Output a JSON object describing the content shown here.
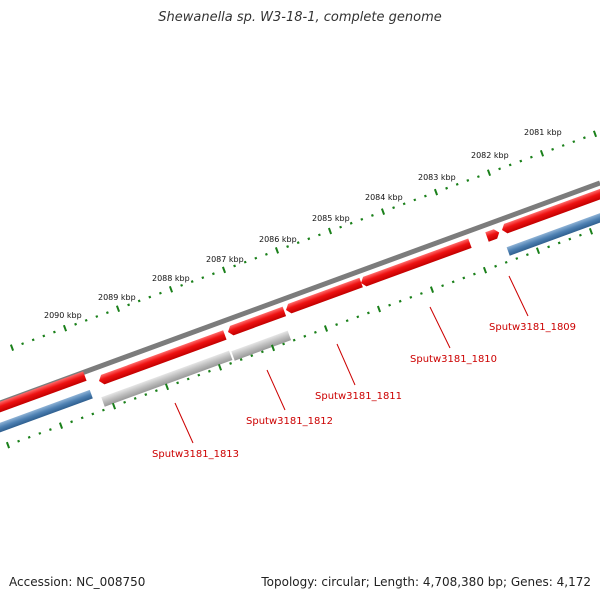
{
  "title": "Shewanella sp. W3-18-1, complete genome",
  "footer": {
    "accession": "Accession: NC_008750",
    "summary": "Topology: circular; Length: 4,708,380 bp; Genes: 4,172"
  },
  "colors": {
    "backbone": "#808080",
    "forward_gene": "#e8131b",
    "reverse_gene": "#4d80b2",
    "pseudogene": "#b7b7b7",
    "ruler": "#1a801a",
    "gene_label": "#cc0000"
  },
  "ruler": {
    "labels": [
      "2081 kbp",
      "2082 kbp",
      "2083 kbp",
      "2084 kbp",
      "2085 kbp",
      "2086 kbp",
      "2087 kbp",
      "2088 kbp",
      "2089 kbp",
      "2090 kbp"
    ]
  },
  "gene_labels": [
    "Sputw3181_1809",
    "Sputw3181_1810",
    "Sputw3181_1811",
    "Sputw3181_1812",
    "Sputw3181_1813"
  ]
}
